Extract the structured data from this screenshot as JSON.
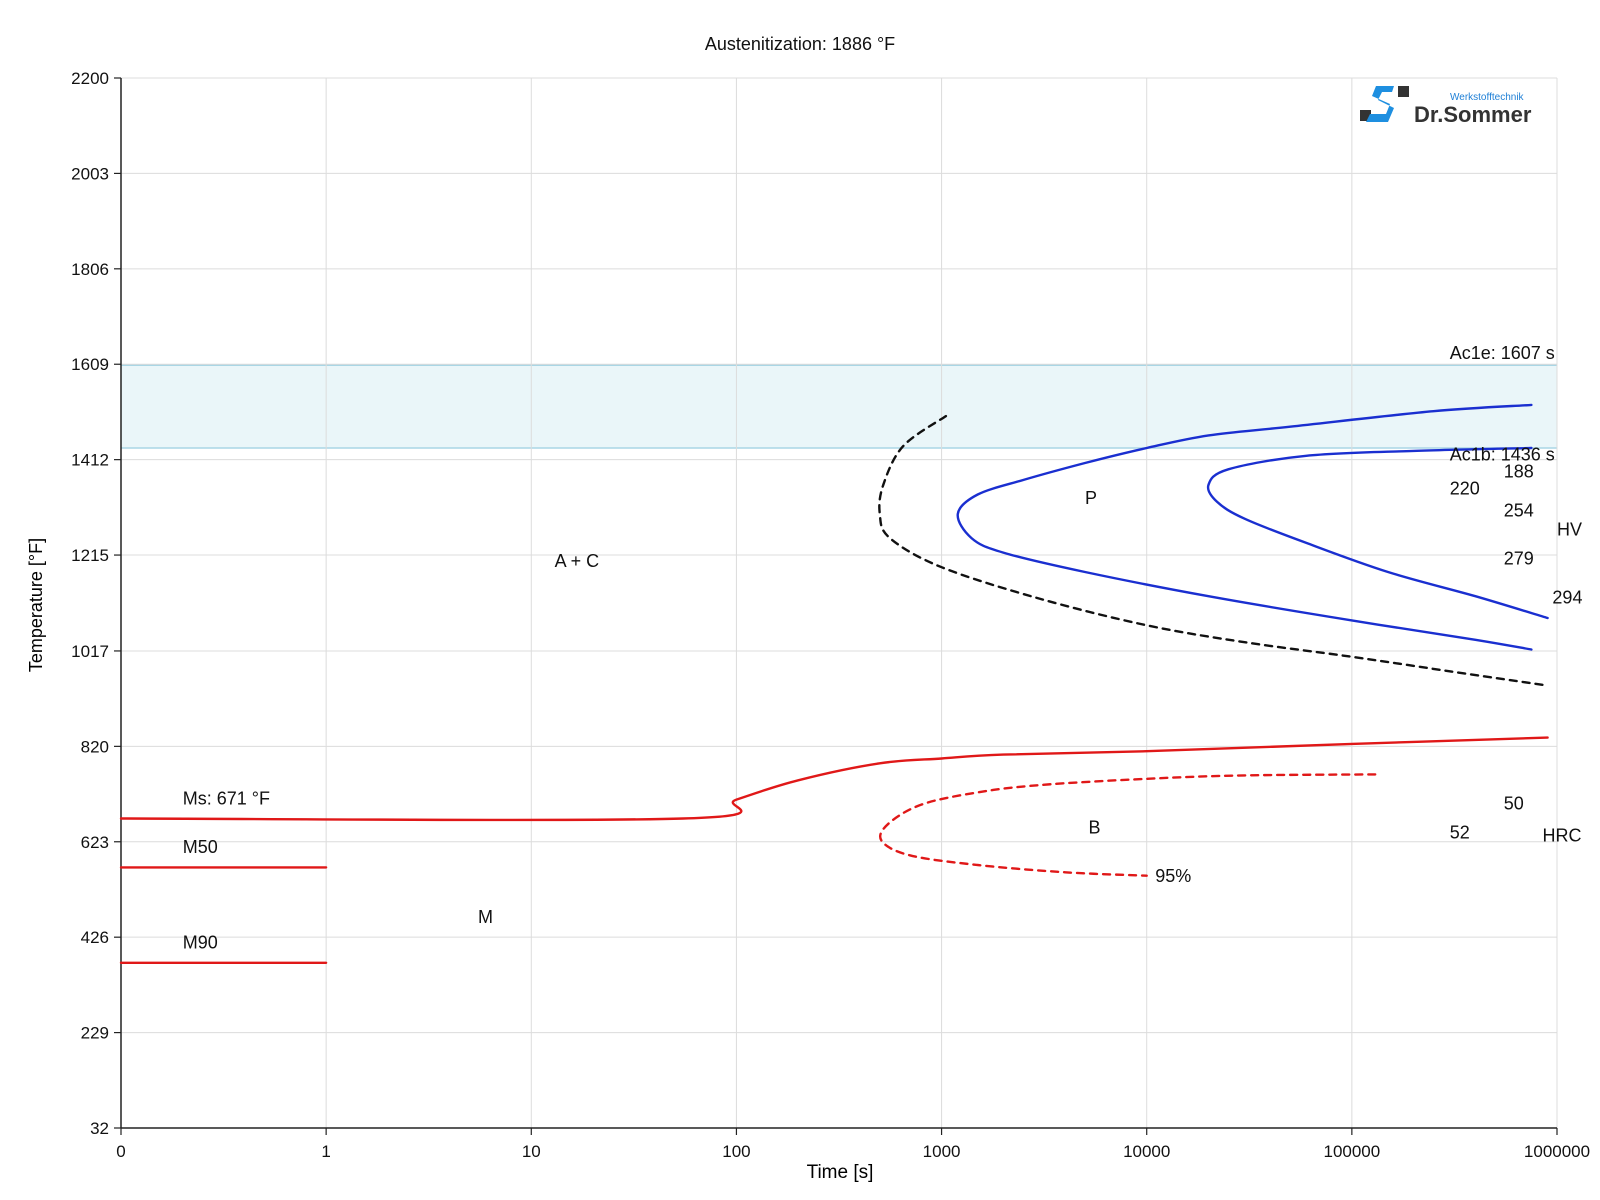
{
  "chart_data": {
    "type": "line",
    "title": "Austenitization: 1886 °F",
    "xlabel": "Time [s]",
    "ylabel": "Temperature [°F]",
    "x_scale": "log",
    "x_ticks": [
      {
        "value": 0.1,
        "label": "0"
      },
      {
        "value": 1,
        "label": "1"
      },
      {
        "value": 10,
        "label": "10"
      },
      {
        "value": 100,
        "label": "100"
      },
      {
        "value": 1000,
        "label": "1000"
      },
      {
        "value": 10000,
        "label": "10000"
      },
      {
        "value": 100000,
        "label": "100000"
      },
      {
        "value": 1000000,
        "label": "1000000"
      }
    ],
    "y_ticks": [
      32,
      229,
      426,
      623,
      820,
      1017,
      1215,
      1412,
      1609,
      1806,
      2003,
      2200
    ],
    "xlim": [
      0.1,
      1000000
    ],
    "ylim": [
      32,
      2200
    ],
    "grid": true,
    "ac_band": {
      "low": 1436,
      "high": 1607,
      "color": "#eaf6f9",
      "edge_color": "#a9d6e5"
    },
    "series": [
      {
        "id": "start-dashed",
        "color": "#111111",
        "dashed": true,
        "points": [
          [
            1050,
            1502
          ],
          [
            650,
            1440
          ],
          [
            520,
            1360
          ],
          [
            500,
            1300
          ],
          [
            560,
            1250
          ],
          [
            1000,
            1190
          ],
          [
            3000,
            1125
          ],
          [
            10000,
            1070
          ],
          [
            30000,
            1035
          ],
          [
            100000,
            1005
          ],
          [
            300000,
            975
          ],
          [
            850000,
            947
          ]
        ]
      },
      {
        "id": "pearlite-start",
        "color": "#1a2fd0",
        "dashed": false,
        "points": [
          [
            750000,
            1525
          ],
          [
            250000,
            1512
          ],
          [
            50000,
            1480
          ],
          [
            20000,
            1462
          ],
          [
            10000,
            1436
          ],
          [
            5000,
            1405
          ],
          [
            2500,
            1370
          ],
          [
            1500,
            1340
          ],
          [
            1200,
            1300
          ],
          [
            1400,
            1250
          ],
          [
            2000,
            1220
          ],
          [
            5000,
            1180
          ],
          [
            20000,
            1130
          ],
          [
            100000,
            1080
          ],
          [
            400000,
            1040
          ],
          [
            750000,
            1020
          ]
        ]
      },
      {
        "id": "pearlite-end",
        "color": "#1a2fd0",
        "dashed": false,
        "points": [
          [
            750000,
            1436
          ],
          [
            200000,
            1430
          ],
          [
            60000,
            1420
          ],
          [
            25000,
            1392
          ],
          [
            20000,
            1360
          ],
          [
            22000,
            1325
          ],
          [
            30000,
            1290
          ],
          [
            60000,
            1240
          ],
          [
            150000,
            1180
          ],
          [
            400000,
            1130
          ],
          [
            900000,
            1085
          ]
        ]
      },
      {
        "id": "ms-line",
        "color": "#e01818",
        "dashed": false,
        "points": [
          [
            0.1,
            671
          ],
          [
            55,
            671
          ],
          [
            100,
            710
          ],
          [
            200,
            750
          ],
          [
            500,
            785
          ],
          [
            1000,
            795
          ],
          [
            2000,
            803
          ],
          [
            10000,
            810
          ],
          [
            100000,
            825
          ],
          [
            900000,
            838
          ]
        ]
      },
      {
        "id": "m50-line",
        "color": "#e01818",
        "dashed": false,
        "points": [
          [
            0.1,
            570
          ],
          [
            1,
            570
          ]
        ]
      },
      {
        "id": "m90-line",
        "color": "#e01818",
        "dashed": false,
        "points": [
          [
            0.1,
            373
          ],
          [
            1,
            373
          ]
        ]
      },
      {
        "id": "bainite-95",
        "color": "#e01818",
        "dashed": true,
        "points": [
          [
            130000,
            762
          ],
          [
            30000,
            760
          ],
          [
            10000,
            753
          ],
          [
            3000,
            740
          ],
          [
            1500,
            725
          ],
          [
            800,
            700
          ],
          [
            550,
            660
          ],
          [
            510,
            625
          ],
          [
            700,
            595
          ],
          [
            1500,
            575
          ],
          [
            4000,
            560
          ],
          [
            10000,
            553
          ]
        ]
      }
    ],
    "annotations": [
      {
        "text": "Ac1e: 1607 s",
        "x": 300000,
        "y": 1620
      },
      {
        "text": "Ac1b: 1436 s",
        "x": 300000,
        "y": 1410
      },
      {
        "text": "A + C",
        "x": 13,
        "y": 1190
      },
      {
        "text": "P",
        "x": 5000,
        "y": 1320
      },
      {
        "text": "B",
        "x": 5200,
        "y": 640
      },
      {
        "text": "M",
        "x": 5.5,
        "y": 455
      },
      {
        "text": "Ms: 671 °F",
        "x": 0.2,
        "y": 700
      },
      {
        "text": "M50",
        "x": 0.2,
        "y": 600
      },
      {
        "text": "M90",
        "x": 0.2,
        "y": 403
      },
      {
        "text": "95%",
        "x": 11000,
        "y": 540
      },
      {
        "text": "188",
        "x": 550000,
        "y": 1375
      },
      {
        "text": "220",
        "x": 300000,
        "y": 1340
      },
      {
        "text": "254",
        "x": 550000,
        "y": 1295
      },
      {
        "text": "HV",
        "x": 1000000,
        "y": 1255
      },
      {
        "text": "279",
        "x": 550000,
        "y": 1195
      },
      {
        "text": "294",
        "x": 950000,
        "y": 1115
      },
      {
        "text": "50",
        "x": 550000,
        "y": 690
      },
      {
        "text": "52",
        "x": 300000,
        "y": 630
      },
      {
        "text": "HRC",
        "x": 850000,
        "y": 624
      }
    ]
  },
  "logo": {
    "sub": "Werkstofftechnik",
    "main": "Dr.Sommer"
  }
}
